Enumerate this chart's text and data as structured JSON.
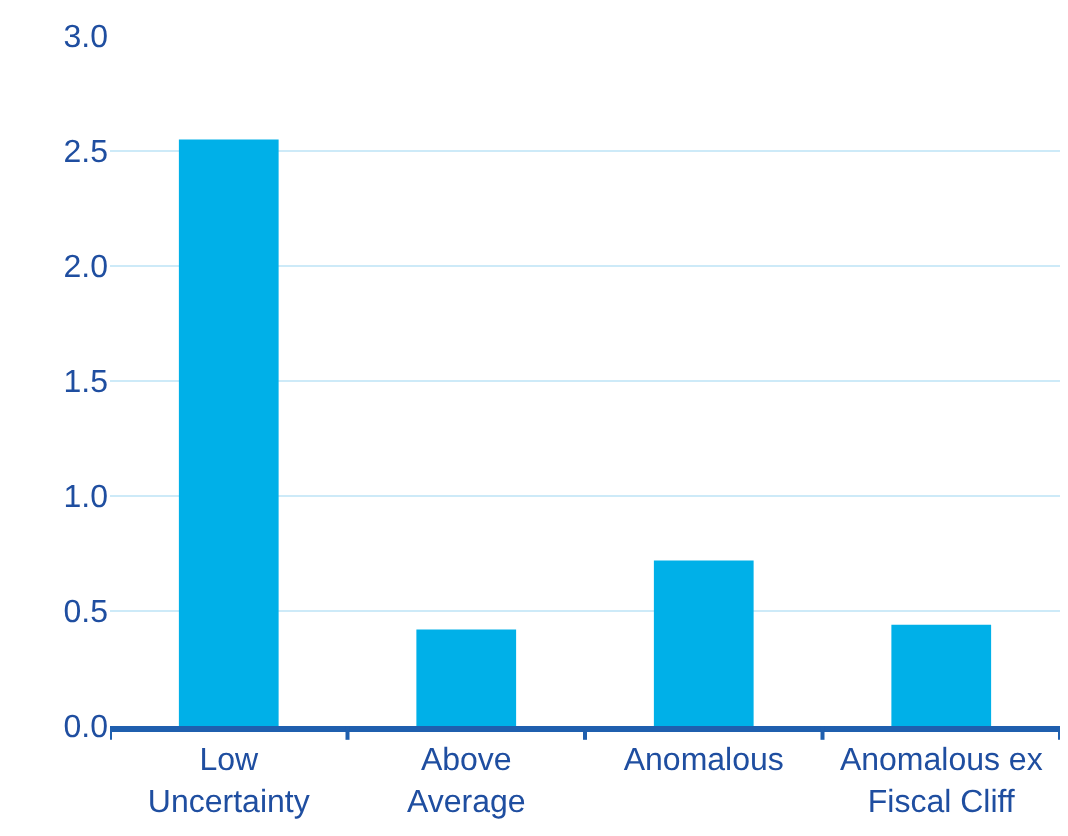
{
  "chart_data": {
    "type": "bar",
    "categories": [
      "Low\nUncertainty",
      "Above\nAverage",
      "Anomalous",
      "Anomalous ex\nFiscal Cliff"
    ],
    "values": [
      2.55,
      0.42,
      0.72,
      0.44
    ],
    "color": "#00b0e8",
    "ylim": [
      0,
      3.0
    ],
    "yticks": [
      {
        "value": 0,
        "label": "0.0"
      },
      {
        "value": 0.5,
        "label": "0.5"
      },
      {
        "value": 1.0,
        "label": "1.0"
      },
      {
        "value": 1.5,
        "label": "1.5"
      },
      {
        "value": 2.0,
        "label": "2.0"
      },
      {
        "value": 2.5,
        "label": "2.5"
      },
      {
        "value": 3.0,
        "label": "3.0"
      }
    ],
    "grid": "y"
  }
}
